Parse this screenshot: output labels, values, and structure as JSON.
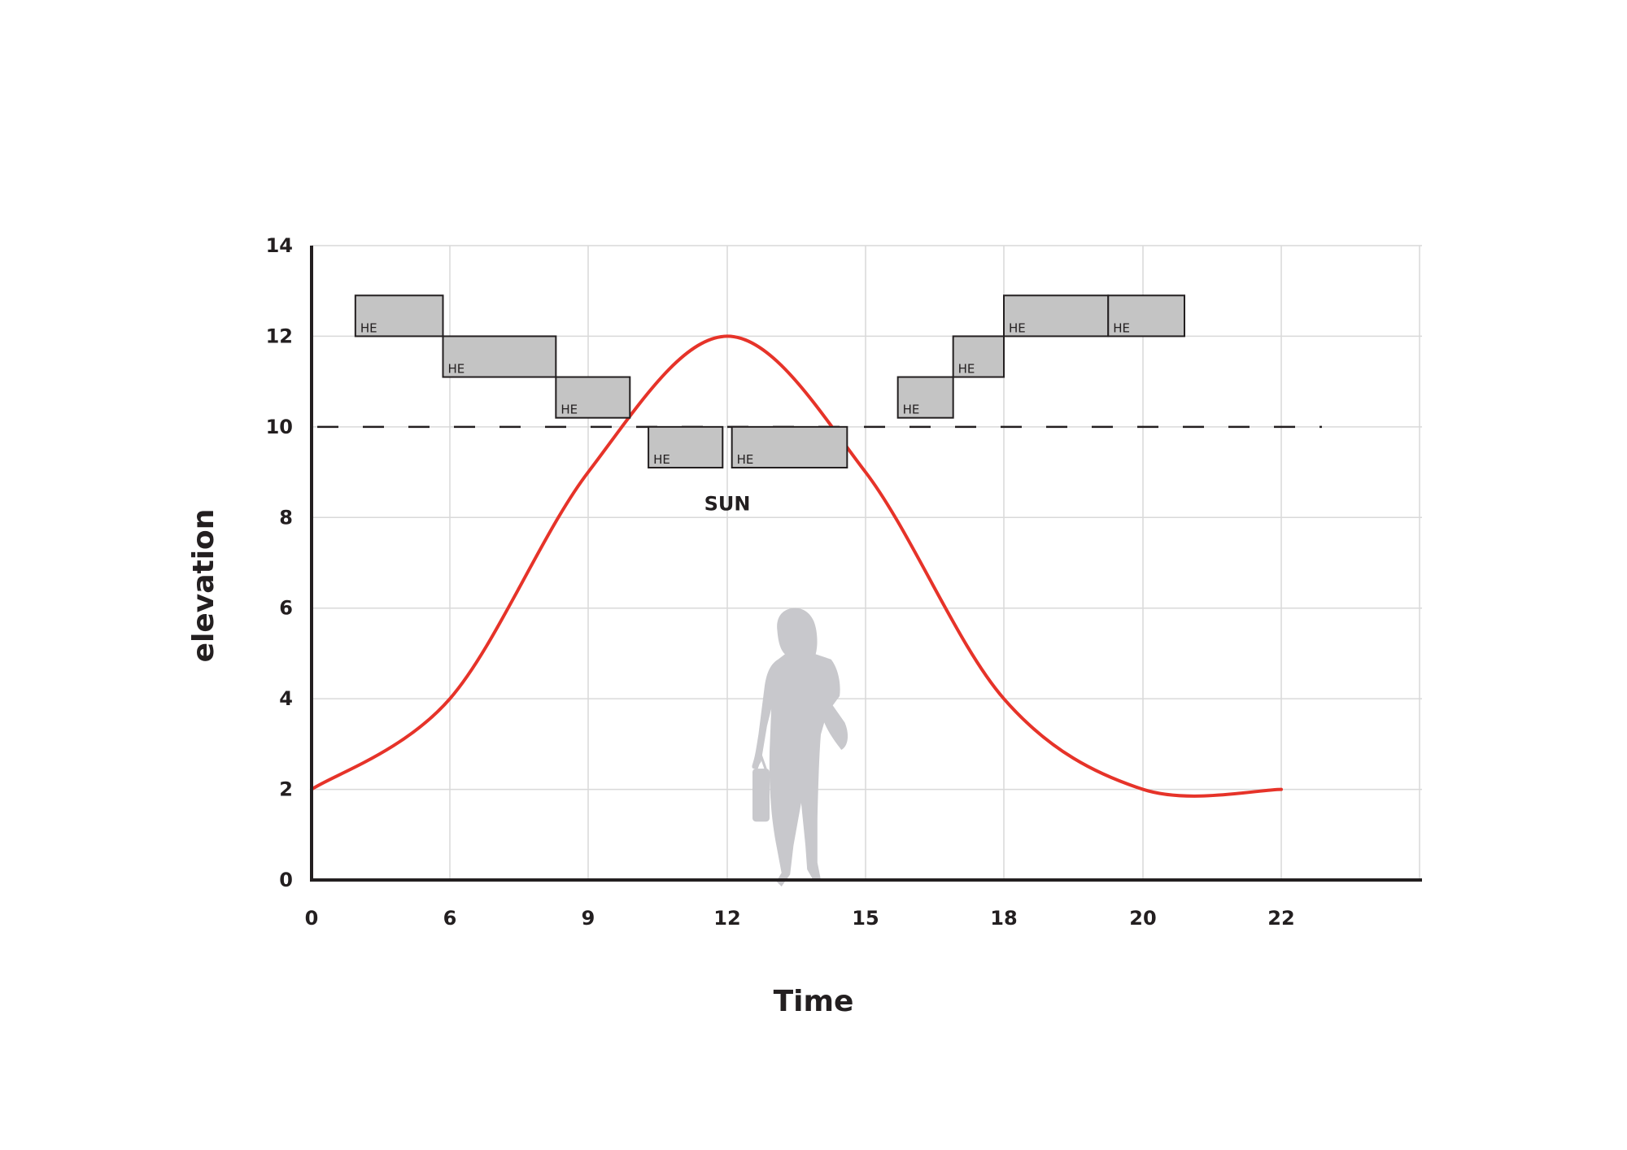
{
  "chart_data": {
    "type": "line",
    "title": "",
    "xlabel": "Time",
    "ylabel": "elevation",
    "x_ticks": [
      "0",
      "6",
      "9",
      "12",
      "15",
      "18",
      "20",
      "22"
    ],
    "y_ticks": [
      "0",
      "2",
      "4",
      "6",
      "8",
      "10",
      "12",
      "14"
    ],
    "ylim": [
      0,
      14
    ],
    "grid": true,
    "series": [
      {
        "color": "#e63329",
        "points": [
          {
            "x": "0",
            "y": 2.0
          },
          {
            "x": "6",
            "y": 4.0
          },
          {
            "x": "9",
            "y": 9.0
          },
          {
            "x": "12",
            "y": 12.0
          },
          {
            "x": "15",
            "y": 9.0
          },
          {
            "x": "18",
            "y": 4.0
          },
          {
            "x": "20",
            "y": 2.0
          },
          {
            "x": "22",
            "y": 2.0
          }
        ]
      }
    ],
    "threshold": {
      "y": 10,
      "style": "dashed"
    },
    "he_blocks": [
      {
        "label": "HE",
        "x_start": 1.9,
        "x_end": 5.7,
        "y_bottom": 12.0,
        "y_top": 12.9
      },
      {
        "label": "HE",
        "x_start": 5.7,
        "x_end": 8.3,
        "y_bottom": 11.1,
        "y_top": 12.0
      },
      {
        "label": "HE",
        "x_start": 8.3,
        "x_end": 9.9,
        "y_bottom": 10.2,
        "y_top": 11.1
      },
      {
        "label": "HE",
        "x_start": 10.3,
        "x_end": 11.9,
        "y_bottom": 9.1,
        "y_top": 10.0
      },
      {
        "label": "HE",
        "x_start": 12.1,
        "x_end": 14.6,
        "y_bottom": 9.1,
        "y_top": 10.0
      },
      {
        "label": "HE",
        "x_start": 15.7,
        "x_end": 16.9,
        "y_bottom": 10.2,
        "y_top": 11.1
      },
      {
        "label": "HE",
        "x_start": 16.9,
        "x_end": 18.0,
        "y_bottom": 11.1,
        "y_top": 12.0
      },
      {
        "label": "HE",
        "x_start": 18.0,
        "x_end": 19.5,
        "y_bottom": 12.0,
        "y_top": 12.9
      },
      {
        "label": "HE",
        "x_start": 19.5,
        "x_end": 20.6,
        "y_bottom": 12.0,
        "y_top": 12.9
      }
    ],
    "annotations": [
      {
        "text": "SUN",
        "x": "12",
        "y": 8.3
      }
    ],
    "figure_icon": "walking-woman-silhouette-icon",
    "colors": {
      "curve": "#e63329",
      "grid": "#d9d9d9",
      "axis": "#231f20",
      "he_fill": "#c4c4c4",
      "he_stroke": "#231f20",
      "silhouette": "#c8c8cc"
    }
  }
}
